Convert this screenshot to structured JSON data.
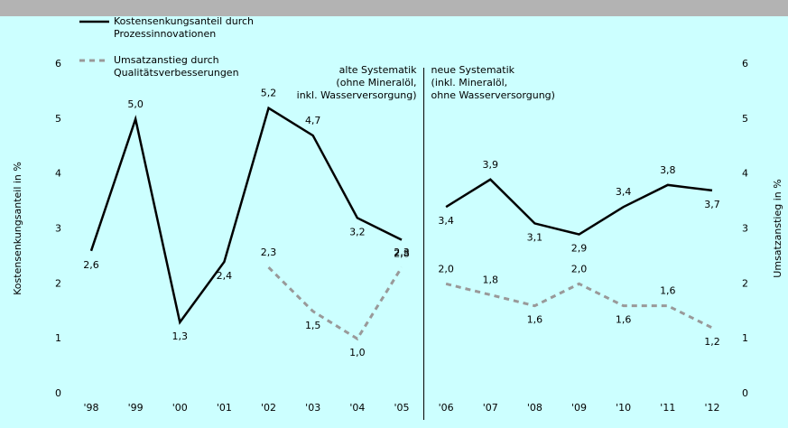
{
  "chart_data": {
    "type": "line",
    "categories": [
      "'98",
      "'99",
      "'00",
      "'01",
      "'02",
      "'03",
      "'04",
      "'05",
      "'06",
      "'07",
      "'08",
      "'09",
      "'10",
      "'11",
      "'12"
    ],
    "series": [
      {
        "name": "Kostensenkungsanteil durch Prozessinnovationen",
        "color": "#000000",
        "dash": false,
        "values": [
          2.6,
          5.0,
          1.3,
          2.4,
          5.2,
          4.7,
          3.2,
          2.8,
          3.4,
          3.9,
          3.1,
          2.9,
          3.4,
          3.8,
          3.7
        ],
        "value_labels": [
          "2,6",
          "5,0",
          "1,3",
          "2,4",
          "5,2",
          "4,7",
          "3,2",
          "2,8",
          "3,4",
          "3,9",
          "3,1",
          "2,9",
          "3,4",
          "3,8",
          "3,7"
        ]
      },
      {
        "name": "Umsatzanstieg durch Qualitätsverbesserungen",
        "color": "#999999",
        "dash": true,
        "axis": "y2",
        "values": [
          null,
          null,
          null,
          null,
          2.3,
          1.5,
          1.0,
          2.3,
          2.0,
          1.8,
          1.6,
          2.0,
          1.6,
          1.6,
          1.2
        ],
        "value_labels": [
          null,
          null,
          null,
          null,
          "2,3",
          "1,5",
          "1,0",
          "2,3",
          "2,0",
          "1,8",
          "1,6",
          "2,0",
          "1,6",
          "1,6",
          "1,2"
        ]
      }
    ],
    "ylabel": "Kostensenkungsanteil in %",
    "y2label": "Umsatzanstieg in %",
    "ylim": [
      0,
      6
    ],
    "yticks": [
      0,
      1,
      2,
      3,
      4,
      5,
      6
    ],
    "y2lim": [
      0,
      6
    ],
    "y2ticks": [
      0,
      1,
      2,
      3,
      4,
      5,
      6
    ],
    "divider_after": "'05",
    "annotations": [
      {
        "lines": [
          "alte Systematik",
          "(ohne Mineralöl,",
          "inkl. Wasserversorgung)"
        ],
        "side": "left"
      },
      {
        "lines": [
          "neue Systematik",
          "(inkl. Mineralöl,",
          "ohne Wasserversorgung)"
        ],
        "side": "right"
      }
    ]
  }
}
